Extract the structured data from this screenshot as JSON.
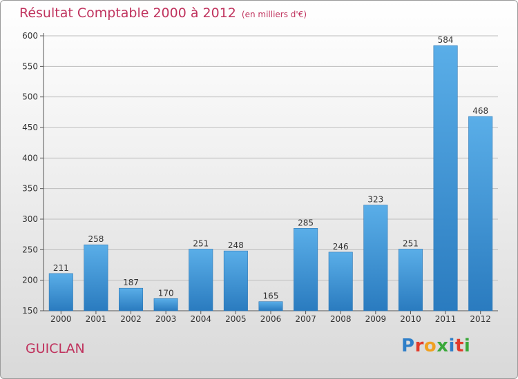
{
  "header": {
    "title": "Résultat Comptable 2000 à 2012",
    "subtitle": "(en milliers d'€)"
  },
  "footer": {
    "town": "GUICLAN",
    "logo": "Proxiti",
    "logo_letters": [
      {
        "char": "P",
        "color": "#2f7fc8"
      },
      {
        "char": "r",
        "color": "#e23a2a"
      },
      {
        "char": "o",
        "color": "#f0a020"
      },
      {
        "char": "x",
        "color": "#3aa83a"
      },
      {
        "char": "i",
        "color": "#2f7fc8"
      },
      {
        "char": "t",
        "color": "#e23a2a"
      },
      {
        "char": "i",
        "color": "#3aa83a"
      }
    ]
  },
  "colors": {
    "bar_light": "#5aaee8",
    "bar_dark": "#2a7bbf",
    "accent": "#c0335e"
  },
  "chart_data": {
    "type": "bar",
    "title": "Résultat Comptable 2000 à 2012",
    "subtitle": "(en milliers d'€)",
    "xlabel": "",
    "ylabel": "",
    "categories": [
      "2000",
      "2001",
      "2002",
      "2003",
      "2004",
      "2005",
      "2006",
      "2007",
      "2008",
      "2009",
      "2010",
      "2011",
      "2012"
    ],
    "values": [
      211,
      258,
      187,
      170,
      251,
      248,
      165,
      285,
      246,
      323,
      251,
      584,
      468
    ],
    "ylim": [
      150,
      600
    ],
    "yticks": [
      150,
      200,
      250,
      300,
      350,
      400,
      450,
      500,
      550,
      600
    ],
    "grid": true
  }
}
